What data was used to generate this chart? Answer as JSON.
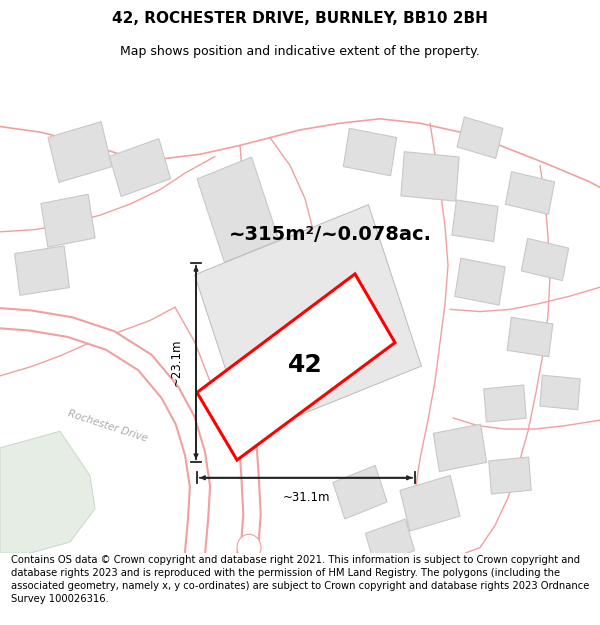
{
  "title": "42, ROCHESTER DRIVE, BURNLEY, BB10 2BH",
  "subtitle": "Map shows position and indicative extent of the property.",
  "area_text": "~315m²/~0.078ac.",
  "number_label": "42",
  "dim_horizontal": "~31.1m",
  "dim_vertical": "~23.1m",
  "street_label": "Rochester Drive",
  "footer_text": "Contains OS data © Crown copyright and database right 2021. This information is subject to Crown copyright and database rights 2023 and is reproduced with the permission of HM Land Registry. The polygons (including the associated geometry, namely x, y co-ordinates) are subject to Crown copyright and database rights 2023 Ordnance Survey 100026316.",
  "bg_color": "#ffffff",
  "highlight_color": "#ff0000",
  "building_fill": "#e0e0e0",
  "building_edge": "#c8c8c8",
  "road_color": "#f0a0a0",
  "road_fill": "#f8e8e8",
  "green_fill": "#e5ede5",
  "green_edge": "#c8d8c8",
  "title_fontsize": 11,
  "subtitle_fontsize": 9,
  "footer_fontsize": 7.2,
  "dim_line_color": "#222222",
  "street_color": "#aaaaaa",
  "number_size": 18,
  "area_size": 14
}
